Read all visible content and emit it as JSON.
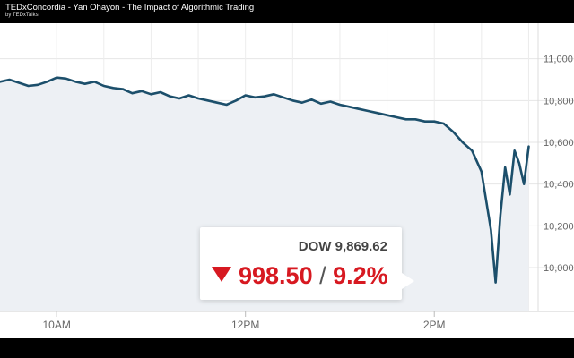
{
  "video": {
    "title": "TEDxConcordia - Yan Ohayon - The Impact of Algorithmic Trading",
    "channel": "by TEDxTalks"
  },
  "callout": {
    "index_label": "DOW 9,869.62",
    "change_points": "998.50",
    "separator": "/",
    "change_percent": "9.2%",
    "direction_icon": "down-triangle-icon",
    "change_color": "#d71921"
  },
  "chart_data": {
    "type": "line",
    "title": "",
    "xlabel": "",
    "ylabel": "",
    "y_ticks": [
      "11,000",
      "10,800",
      "10,600",
      "10,400",
      "10,200",
      "10,000"
    ],
    "y_tick_values": [
      11000,
      10800,
      10600,
      10400,
      10200,
      10000
    ],
    "x_ticks": [
      "10AM",
      "12PM",
      "2PM"
    ],
    "x_tick_hours": [
      10,
      12,
      14
    ],
    "xlim": [
      9.4,
      15.1
    ],
    "ylim": [
      9790,
      11170
    ],
    "grid": true,
    "line_color": "#1c4f6b",
    "fill_color": "#edf0f4",
    "series": [
      {
        "x": [
          9.4,
          9.5,
          9.6,
          9.7,
          9.8,
          9.9,
          10.0,
          10.1,
          10.2,
          10.3,
          10.4,
          10.5,
          10.6,
          10.7,
          10.8,
          10.9,
          11.0,
          11.1,
          11.2,
          11.3,
          11.4,
          11.5,
          11.6,
          11.7,
          11.8,
          11.9,
          12.0,
          12.1,
          12.2,
          12.3,
          12.4,
          12.5,
          12.6,
          12.7,
          12.8,
          12.9,
          13.0,
          13.1,
          13.2,
          13.3,
          13.4,
          13.5,
          13.6,
          13.7,
          13.8,
          13.9,
          14.0,
          14.1,
          14.2,
          14.3,
          14.4,
          14.5,
          14.6,
          14.65,
          14.7,
          14.75,
          14.8,
          14.85,
          14.9,
          14.95,
          15.0
        ],
        "values": [
          10890,
          10900,
          10885,
          10870,
          10875,
          10890,
          10910,
          10905,
          10890,
          10880,
          10890,
          10870,
          10860,
          10855,
          10835,
          10845,
          10830,
          10840,
          10820,
          10810,
          10825,
          10810,
          10800,
          10790,
          10780,
          10800,
          10825,
          10815,
          10820,
          10830,
          10815,
          10800,
          10790,
          10805,
          10785,
          10795,
          10780,
          10770,
          10760,
          10750,
          10740,
          10730,
          10720,
          10710,
          10710,
          10700,
          10700,
          10690,
          10650,
          10600,
          10560,
          10460,
          10180,
          9929,
          10250,
          10480,
          10350,
          10560,
          10500,
          10400,
          10580
        ]
      }
    ]
  }
}
